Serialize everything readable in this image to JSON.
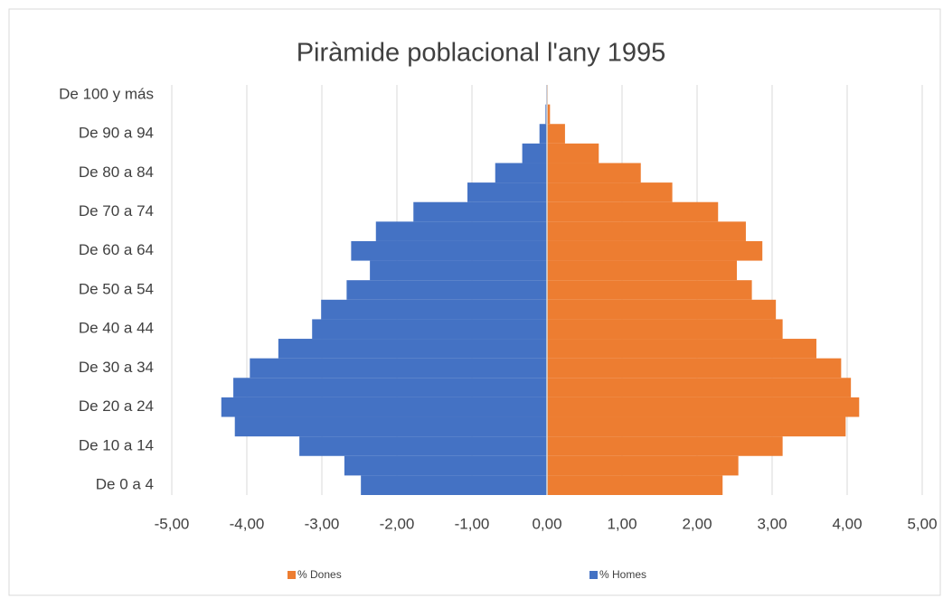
{
  "chart_data": {
    "type": "pyramid",
    "title": "Piràmide poblacional l'any 1995",
    "categories": [
      "De 0 a 4",
      null,
      "De 10 a 14",
      null,
      "De 20 a 24",
      null,
      "De 30 a 34",
      null,
      "De 40 a 44",
      null,
      "De 50 a 54",
      null,
      "De 60 a 64",
      null,
      "De 70 a 74",
      null,
      "De 80 a 84",
      null,
      "De 90 a 94",
      null,
      "De 100 y más"
    ],
    "series": [
      {
        "name": "% Dones",
        "color": "#ed7d31",
        "values": [
          2.34,
          2.55,
          3.14,
          3.98,
          4.16,
          4.05,
          3.92,
          3.59,
          3.14,
          3.05,
          2.73,
          2.53,
          2.87,
          2.65,
          2.28,
          1.67,
          1.25,
          0.69,
          0.24,
          0.04,
          0.01
        ]
      },
      {
        "name": "% Homes",
        "color": "#4472c4",
        "values": [
          -2.48,
          -2.7,
          -3.3,
          -4.16,
          -4.34,
          -4.18,
          -3.96,
          -3.58,
          -3.13,
          -3.01,
          -2.67,
          -2.36,
          -2.61,
          -2.28,
          -1.78,
          -1.06,
          -0.69,
          -0.33,
          -0.1,
          -0.02,
          -0.01
        ]
      }
    ],
    "xlim": [
      -5,
      5
    ],
    "xticks": [
      {
        "value": -5,
        "label": "-5,00"
      },
      {
        "value": -4,
        "label": "-4,00"
      },
      {
        "value": -3,
        "label": "-3,00"
      },
      {
        "value": -2,
        "label": "-2,00"
      },
      {
        "value": -1,
        "label": "-1,00"
      },
      {
        "value": 0,
        "label": "0,00"
      },
      {
        "value": 1,
        "label": "1,00"
      },
      {
        "value": 2,
        "label": "2,00"
      },
      {
        "value": 3,
        "label": "3,00"
      },
      {
        "value": 4,
        "label": "4,00"
      },
      {
        "value": 5,
        "label": "5,00"
      }
    ],
    "grid": true,
    "legend": "bottom"
  }
}
